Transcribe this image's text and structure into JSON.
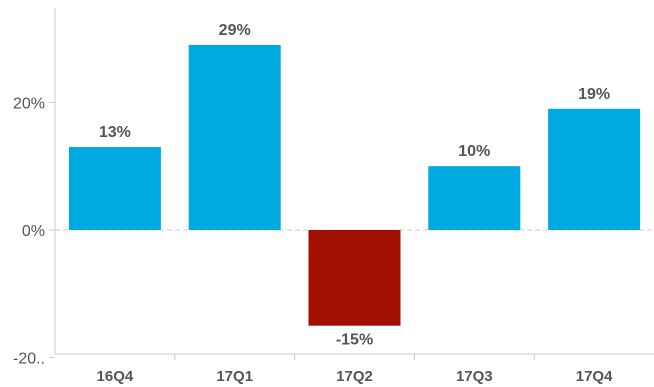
{
  "chart_data": {
    "type": "bar",
    "categories": [
      "16Q4",
      "17Q1",
      "17Q2",
      "17Q3",
      "17Q4"
    ],
    "values": [
      13,
      29,
      -15,
      10,
      19
    ],
    "data_labels": [
      "13%",
      "29%",
      "-15%",
      "10%",
      "19%"
    ],
    "y_ticks": [
      {
        "value": 20,
        "label": "20%"
      },
      {
        "value": 0,
        "label": "0%"
      },
      {
        "value": -20,
        "label": "-20.."
      }
    ],
    "ylim": [
      -20,
      35
    ],
    "colors": {
      "positive": "#00A9E0",
      "negative": "#A00F00",
      "axis": "#cccccc",
      "zero_line": "#cccccc",
      "text": "#555555"
    }
  }
}
